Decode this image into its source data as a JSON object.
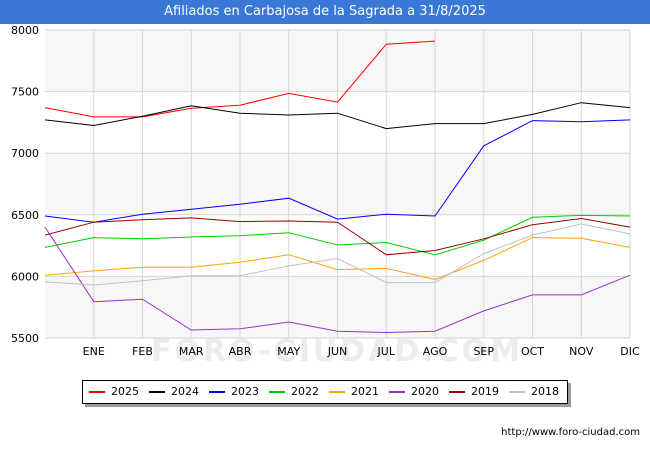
{
  "header": {
    "title": "Afiliados en Carbajosa de la Sagrada a 31/8/2025"
  },
  "footer": {
    "url": "http://www.foro-ciudad.com"
  },
  "watermark": "FORO-CIUDAD.COM",
  "chart_data": {
    "type": "line",
    "title": "Afiliados en Carbajosa de la Sagrada a 31/8/2025",
    "categories": [
      "",
      "ENE",
      "FEB",
      "MAR",
      "ABR",
      "MAY",
      "JUN",
      "JUL",
      "AGO",
      "SEP",
      "OCT",
      "NOV",
      "DIC"
    ],
    "ylim": [
      5500,
      8000
    ],
    "yticks": [
      5500,
      6000,
      6500,
      7000,
      7500,
      8000
    ],
    "grid": true,
    "legend_position": "bottom",
    "series": [
      {
        "name": "2025",
        "color": "#ff0000",
        "values": [
          7370,
          7295,
          7295,
          7365,
          7390,
          7485,
          7415,
          7885,
          7910,
          null,
          null,
          null,
          null
        ]
      },
      {
        "name": "2024",
        "color": "#000000",
        "values": [
          7270,
          7225,
          7300,
          7385,
          7325,
          7310,
          7325,
          7200,
          7240,
          7240,
          7315,
          7410,
          7370
        ]
      },
      {
        "name": "2023",
        "color": "#0000ff",
        "values": [
          6490,
          6440,
          6505,
          6545,
          6585,
          6635,
          6465,
          6505,
          6490,
          7060,
          7265,
          7255,
          7270
        ]
      },
      {
        "name": "2022",
        "color": "#00cc00",
        "values": [
          6235,
          6315,
          6305,
          6320,
          6330,
          6355,
          6255,
          6275,
          6175,
          6295,
          6480,
          6495,
          6490
        ]
      },
      {
        "name": "2021",
        "color": "#ffa500",
        "values": [
          6010,
          6045,
          6075,
          6075,
          6115,
          6175,
          6055,
          6065,
          5975,
          6130,
          6315,
          6310,
          6235
        ]
      },
      {
        "name": "2020",
        "color": "#9933cc",
        "values": [
          6400,
          5795,
          5815,
          5565,
          5575,
          5630,
          5555,
          5545,
          5555,
          5720,
          5850,
          5850,
          6010
        ]
      },
      {
        "name": "2019",
        "color": "#990000",
        "values": [
          6335,
          6440,
          6460,
          6475,
          6445,
          6450,
          6440,
          6175,
          6210,
          6305,
          6420,
          6470,
          6400
        ]
      },
      {
        "name": "2018",
        "color": "#c0c0c0",
        "values": [
          5955,
          5930,
          5965,
          6005,
          6005,
          6085,
          6145,
          5950,
          5950,
          6185,
          6335,
          6425,
          6345
        ]
      }
    ]
  }
}
